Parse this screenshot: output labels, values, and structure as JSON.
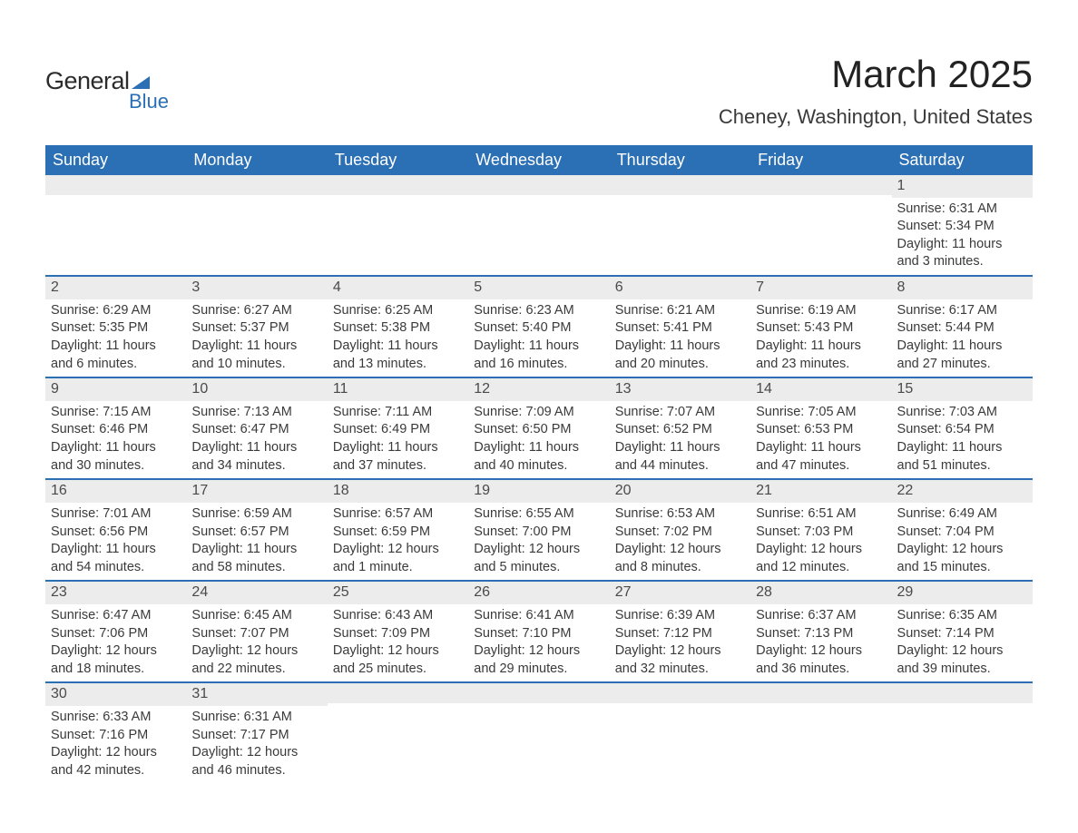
{
  "logo": {
    "word1": "General",
    "word2": "Blue"
  },
  "title": "March 2025",
  "location": "Cheney, Washington, United States",
  "colors": {
    "header_bg": "#2b6fb5",
    "header_text": "#ffffff",
    "daynum_bg": "#ececec",
    "row_border": "#2b6fb5",
    "body_bg": "#ffffff",
    "text": "#3a3a3a"
  },
  "typography": {
    "title_fontsize": 42,
    "location_fontsize": 22,
    "dayhead_fontsize": 18,
    "daynum_fontsize": 16,
    "body_fontsize": 14.5
  },
  "day_headers": [
    "Sunday",
    "Monday",
    "Tuesday",
    "Wednesday",
    "Thursday",
    "Friday",
    "Saturday"
  ],
  "weeks": [
    [
      null,
      null,
      null,
      null,
      null,
      null,
      {
        "n": "1",
        "sr": "Sunrise: 6:31 AM",
        "ss": "Sunset: 5:34 PM",
        "d1": "Daylight: 11 hours",
        "d2": "and 3 minutes."
      }
    ],
    [
      {
        "n": "2",
        "sr": "Sunrise: 6:29 AM",
        "ss": "Sunset: 5:35 PM",
        "d1": "Daylight: 11 hours",
        "d2": "and 6 minutes."
      },
      {
        "n": "3",
        "sr": "Sunrise: 6:27 AM",
        "ss": "Sunset: 5:37 PM",
        "d1": "Daylight: 11 hours",
        "d2": "and 10 minutes."
      },
      {
        "n": "4",
        "sr": "Sunrise: 6:25 AM",
        "ss": "Sunset: 5:38 PM",
        "d1": "Daylight: 11 hours",
        "d2": "and 13 minutes."
      },
      {
        "n": "5",
        "sr": "Sunrise: 6:23 AM",
        "ss": "Sunset: 5:40 PM",
        "d1": "Daylight: 11 hours",
        "d2": "and 16 minutes."
      },
      {
        "n": "6",
        "sr": "Sunrise: 6:21 AM",
        "ss": "Sunset: 5:41 PM",
        "d1": "Daylight: 11 hours",
        "d2": "and 20 minutes."
      },
      {
        "n": "7",
        "sr": "Sunrise: 6:19 AM",
        "ss": "Sunset: 5:43 PM",
        "d1": "Daylight: 11 hours",
        "d2": "and 23 minutes."
      },
      {
        "n": "8",
        "sr": "Sunrise: 6:17 AM",
        "ss": "Sunset: 5:44 PM",
        "d1": "Daylight: 11 hours",
        "d2": "and 27 minutes."
      }
    ],
    [
      {
        "n": "9",
        "sr": "Sunrise: 7:15 AM",
        "ss": "Sunset: 6:46 PM",
        "d1": "Daylight: 11 hours",
        "d2": "and 30 minutes."
      },
      {
        "n": "10",
        "sr": "Sunrise: 7:13 AM",
        "ss": "Sunset: 6:47 PM",
        "d1": "Daylight: 11 hours",
        "d2": "and 34 minutes."
      },
      {
        "n": "11",
        "sr": "Sunrise: 7:11 AM",
        "ss": "Sunset: 6:49 PM",
        "d1": "Daylight: 11 hours",
        "d2": "and 37 minutes."
      },
      {
        "n": "12",
        "sr": "Sunrise: 7:09 AM",
        "ss": "Sunset: 6:50 PM",
        "d1": "Daylight: 11 hours",
        "d2": "and 40 minutes."
      },
      {
        "n": "13",
        "sr": "Sunrise: 7:07 AM",
        "ss": "Sunset: 6:52 PM",
        "d1": "Daylight: 11 hours",
        "d2": "and 44 minutes."
      },
      {
        "n": "14",
        "sr": "Sunrise: 7:05 AM",
        "ss": "Sunset: 6:53 PM",
        "d1": "Daylight: 11 hours",
        "d2": "and 47 minutes."
      },
      {
        "n": "15",
        "sr": "Sunrise: 7:03 AM",
        "ss": "Sunset: 6:54 PM",
        "d1": "Daylight: 11 hours",
        "d2": "and 51 minutes."
      }
    ],
    [
      {
        "n": "16",
        "sr": "Sunrise: 7:01 AM",
        "ss": "Sunset: 6:56 PM",
        "d1": "Daylight: 11 hours",
        "d2": "and 54 minutes."
      },
      {
        "n": "17",
        "sr": "Sunrise: 6:59 AM",
        "ss": "Sunset: 6:57 PM",
        "d1": "Daylight: 11 hours",
        "d2": "and 58 minutes."
      },
      {
        "n": "18",
        "sr": "Sunrise: 6:57 AM",
        "ss": "Sunset: 6:59 PM",
        "d1": "Daylight: 12 hours",
        "d2": "and 1 minute."
      },
      {
        "n": "19",
        "sr": "Sunrise: 6:55 AM",
        "ss": "Sunset: 7:00 PM",
        "d1": "Daylight: 12 hours",
        "d2": "and 5 minutes."
      },
      {
        "n": "20",
        "sr": "Sunrise: 6:53 AM",
        "ss": "Sunset: 7:02 PM",
        "d1": "Daylight: 12 hours",
        "d2": "and 8 minutes."
      },
      {
        "n": "21",
        "sr": "Sunrise: 6:51 AM",
        "ss": "Sunset: 7:03 PM",
        "d1": "Daylight: 12 hours",
        "d2": "and 12 minutes."
      },
      {
        "n": "22",
        "sr": "Sunrise: 6:49 AM",
        "ss": "Sunset: 7:04 PM",
        "d1": "Daylight: 12 hours",
        "d2": "and 15 minutes."
      }
    ],
    [
      {
        "n": "23",
        "sr": "Sunrise: 6:47 AM",
        "ss": "Sunset: 7:06 PM",
        "d1": "Daylight: 12 hours",
        "d2": "and 18 minutes."
      },
      {
        "n": "24",
        "sr": "Sunrise: 6:45 AM",
        "ss": "Sunset: 7:07 PM",
        "d1": "Daylight: 12 hours",
        "d2": "and 22 minutes."
      },
      {
        "n": "25",
        "sr": "Sunrise: 6:43 AM",
        "ss": "Sunset: 7:09 PM",
        "d1": "Daylight: 12 hours",
        "d2": "and 25 minutes."
      },
      {
        "n": "26",
        "sr": "Sunrise: 6:41 AM",
        "ss": "Sunset: 7:10 PM",
        "d1": "Daylight: 12 hours",
        "d2": "and 29 minutes."
      },
      {
        "n": "27",
        "sr": "Sunrise: 6:39 AM",
        "ss": "Sunset: 7:12 PM",
        "d1": "Daylight: 12 hours",
        "d2": "and 32 minutes."
      },
      {
        "n": "28",
        "sr": "Sunrise: 6:37 AM",
        "ss": "Sunset: 7:13 PM",
        "d1": "Daylight: 12 hours",
        "d2": "and 36 minutes."
      },
      {
        "n": "29",
        "sr": "Sunrise: 6:35 AM",
        "ss": "Sunset: 7:14 PM",
        "d1": "Daylight: 12 hours",
        "d2": "and 39 minutes."
      }
    ],
    [
      {
        "n": "30",
        "sr": "Sunrise: 6:33 AM",
        "ss": "Sunset: 7:16 PM",
        "d1": "Daylight: 12 hours",
        "d2": "and 42 minutes."
      },
      {
        "n": "31",
        "sr": "Sunrise: 6:31 AM",
        "ss": "Sunset: 7:17 PM",
        "d1": "Daylight: 12 hours",
        "d2": "and 46 minutes."
      },
      null,
      null,
      null,
      null,
      null
    ]
  ]
}
